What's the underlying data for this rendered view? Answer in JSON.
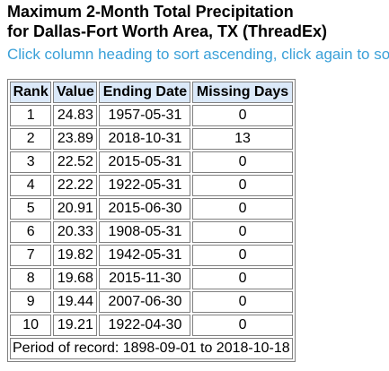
{
  "page": {
    "title_line1": "Maximum 2-Month Total Precipitation",
    "title_line2": "for Dallas-Fort Worth Area, TX (ThreadEx)",
    "sort_hint": "Click column heading to sort ascending, click again to sort descending."
  },
  "colors": {
    "hint_text": "#3aa0d8",
    "header_bg": "#dbe9f9",
    "border": "#808080"
  },
  "table": {
    "columns": [
      "Rank",
      "Value",
      "Ending Date",
      "Missing Days"
    ],
    "rows": [
      {
        "rank": "1",
        "value": "24.83",
        "ending_date": "1957-05-31",
        "missing_days": "0"
      },
      {
        "rank": "2",
        "value": "23.89",
        "ending_date": "2018-10-31",
        "missing_days": "13"
      },
      {
        "rank": "3",
        "value": "22.52",
        "ending_date": "2015-05-31",
        "missing_days": "0"
      },
      {
        "rank": "4",
        "value": "22.22",
        "ending_date": "1922-05-31",
        "missing_days": "0"
      },
      {
        "rank": "5",
        "value": "20.91",
        "ending_date": "2015-06-30",
        "missing_days": "0"
      },
      {
        "rank": "6",
        "value": "20.33",
        "ending_date": "1908-05-31",
        "missing_days": "0"
      },
      {
        "rank": "7",
        "value": "19.82",
        "ending_date": "1942-05-31",
        "missing_days": "0"
      },
      {
        "rank": "8",
        "value": "19.68",
        "ending_date": "2015-11-30",
        "missing_days": "0"
      },
      {
        "rank": "9",
        "value": "19.44",
        "ending_date": "2007-06-30",
        "missing_days": "0"
      },
      {
        "rank": "10",
        "value": "19.21",
        "ending_date": "1922-04-30",
        "missing_days": "0"
      }
    ],
    "footer": "Period of record: 1898-09-01 to 2018-10-18"
  }
}
